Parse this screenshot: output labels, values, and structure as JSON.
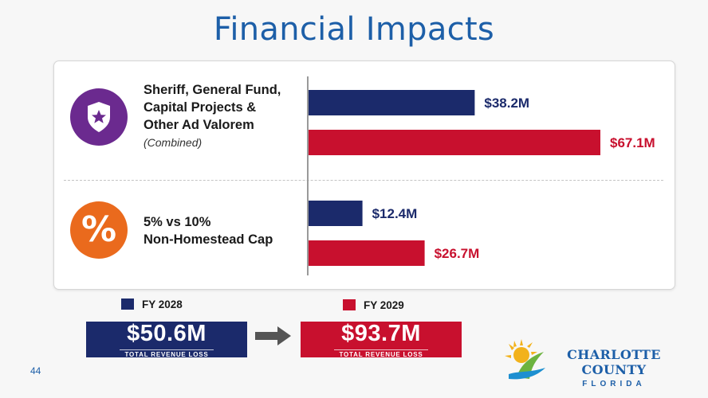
{
  "header": {
    "title": "Financial Impacts"
  },
  "categories": [
    {
      "icon": "shield-star-icon",
      "label_lines": [
        "Sheriff, General Fund,",
        "Capital Projects &",
        "Other Ad Valorem"
      ],
      "note": "(Combined)"
    },
    {
      "icon": "percent-icon",
      "icon_text": "%",
      "label_lines": [
        "5% vs 10%",
        "Non-Homestead Cap"
      ]
    }
  ],
  "chart_data": {
    "type": "bar",
    "orientation": "horizontal",
    "categories": [
      "Sheriff, General Fund, Capital Projects & Other Ad Valorem (Combined)",
      "5% vs 10% Non-Homestead Cap"
    ],
    "series": [
      {
        "name": "FY 2028",
        "values": [
          38.2,
          12.4
        ],
        "labels": [
          "$38.2M",
          "$12.4M"
        ],
        "color": "#1b2a6b"
      },
      {
        "name": "FY 2029",
        "values": [
          67.1,
          26.7
        ],
        "labels": [
          "$67.1M",
          "$26.7M"
        ],
        "color": "#c8102e"
      }
    ],
    "xlim": [
      0,
      67.1
    ],
    "legend_position": "bottom"
  },
  "legend": [
    {
      "label": "FY 2028",
      "color": "#1b2a6b"
    },
    {
      "label": "FY 2029",
      "color": "#c8102e"
    }
  ],
  "totals": [
    {
      "value": "$50.6M",
      "label": "TOTAL REVENUE LOSS",
      "color": "#1b2a6b"
    },
    {
      "value": "$93.7M",
      "label": "TOTAL REVENUE LOSS",
      "color": "#c8102e"
    }
  ],
  "footer": {
    "page_number": "44",
    "logo_name": "CHARLOTTE COUNTY",
    "logo_sub": "FLORIDA"
  },
  "colors": {
    "title": "#1d5fa8",
    "navy": "#1b2a6b",
    "red": "#c8102e",
    "purple": "#6b2a8f",
    "orange": "#ea6a1d",
    "arrow": "#555555"
  }
}
